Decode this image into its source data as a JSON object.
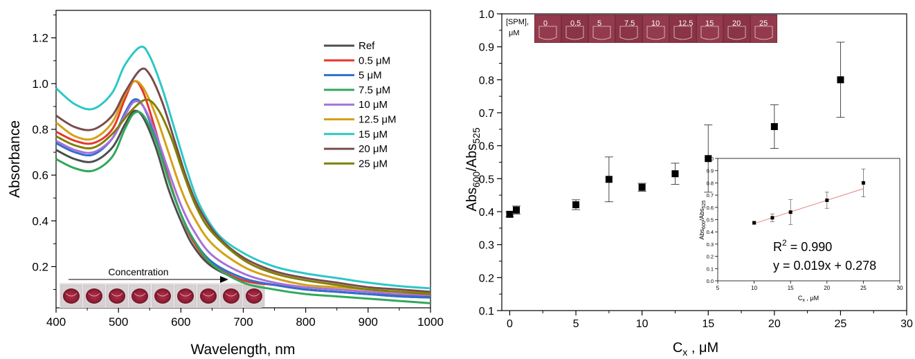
{
  "chart_data": [
    {
      "type": "line",
      "xlabel": "Wavelength, nm",
      "ylabel": "Absorbance",
      "xlim": [
        400,
        1000
      ],
      "ylim": [
        0.02,
        1.32
      ],
      "xticks": [
        400,
        500,
        600,
        700,
        800,
        900,
        1000
      ],
      "yticks": [
        0.2,
        0.4,
        0.6,
        0.8,
        1.0,
        1.2
      ],
      "ytick_labels": [
        "0.2",
        "0.4",
        "0.6",
        "0.8",
        "1.0",
        "1.2"
      ],
      "legend_position": "top-right",
      "annotation": "Concentration",
      "photo_wells": 9,
      "series": [
        {
          "name": "Ref",
          "color": "#4d4d4d",
          "points": [
            [
              400,
              0.71
            ],
            [
              430,
              0.67
            ],
            [
              460,
              0.66
            ],
            [
              490,
              0.72
            ],
            [
              510,
              0.82
            ],
            [
              525,
              0.88
            ],
            [
              540,
              0.85
            ],
            [
              560,
              0.72
            ],
            [
              580,
              0.54
            ],
            [
              600,
              0.4
            ],
            [
              620,
              0.29
            ],
            [
              650,
              0.2
            ],
            [
              700,
              0.14
            ],
            [
              750,
              0.12
            ],
            [
              800,
              0.1
            ],
            [
              850,
              0.09
            ],
            [
              900,
              0.08
            ],
            [
              950,
              0.075
            ],
            [
              1000,
              0.07
            ]
          ]
        },
        {
          "name": "0.5 μM",
          "color": "#e8352d",
          "points": [
            [
              400,
              0.79
            ],
            [
              430,
              0.75
            ],
            [
              460,
              0.74
            ],
            [
              490,
              0.8
            ],
            [
              510,
              0.93
            ],
            [
              525,
              1.01
            ],
            [
              540,
              0.96
            ],
            [
              560,
              0.79
            ],
            [
              580,
              0.59
            ],
            [
              600,
              0.43
            ],
            [
              620,
              0.31
            ],
            [
              650,
              0.21
            ],
            [
              700,
              0.14
            ],
            [
              750,
              0.12
            ],
            [
              800,
              0.1
            ],
            [
              850,
              0.09
            ],
            [
              900,
              0.08
            ],
            [
              950,
              0.07
            ],
            [
              1000,
              0.065
            ]
          ]
        },
        {
          "name": "5 μM",
          "color": "#2f6fd0",
          "points": [
            [
              400,
              0.74
            ],
            [
              430,
              0.7
            ],
            [
              460,
              0.69
            ],
            [
              490,
              0.76
            ],
            [
              510,
              0.87
            ],
            [
              525,
              0.93
            ],
            [
              540,
              0.9
            ],
            [
              560,
              0.76
            ],
            [
              580,
              0.58
            ],
            [
              600,
              0.43
            ],
            [
              620,
              0.32
            ],
            [
              650,
              0.22
            ],
            [
              700,
              0.15
            ],
            [
              750,
              0.12
            ],
            [
              800,
              0.1
            ],
            [
              850,
              0.09
            ],
            [
              900,
              0.08
            ],
            [
              950,
              0.07
            ],
            [
              1000,
              0.065
            ]
          ]
        },
        {
          "name": "7.5 μM",
          "color": "#2fa85a",
          "points": [
            [
              400,
              0.67
            ],
            [
              430,
              0.63
            ],
            [
              460,
              0.62
            ],
            [
              490,
              0.68
            ],
            [
              510,
              0.8
            ],
            [
              525,
              0.87
            ],
            [
              540,
              0.86
            ],
            [
              560,
              0.75
            ],
            [
              580,
              0.58
            ],
            [
              600,
              0.43
            ],
            [
              620,
              0.32
            ],
            [
              650,
              0.21
            ],
            [
              700,
              0.13
            ],
            [
              750,
              0.1
            ],
            [
              800,
              0.08
            ],
            [
              850,
              0.07
            ],
            [
              900,
              0.06
            ],
            [
              950,
              0.05
            ],
            [
              1000,
              0.04
            ]
          ]
        },
        {
          "name": "10 μM",
          "color": "#a671d8",
          "points": [
            [
              400,
              0.75
            ],
            [
              430,
              0.71
            ],
            [
              460,
              0.7
            ],
            [
              490,
              0.76
            ],
            [
              510,
              0.86
            ],
            [
              525,
              0.92
            ],
            [
              540,
              0.9
            ],
            [
              560,
              0.78
            ],
            [
              580,
              0.62
            ],
            [
              600,
              0.47
            ],
            [
              620,
              0.36
            ],
            [
              650,
              0.25
            ],
            [
              700,
              0.17
            ],
            [
              750,
              0.13
            ],
            [
              800,
              0.11
            ],
            [
              850,
              0.1
            ],
            [
              900,
              0.09
            ],
            [
              950,
              0.08
            ],
            [
              1000,
              0.075
            ]
          ]
        },
        {
          "name": "12.5 μM",
          "color": "#d4a017",
          "points": [
            [
              400,
              0.83
            ],
            [
              430,
              0.77
            ],
            [
              460,
              0.76
            ],
            [
              490,
              0.83
            ],
            [
              510,
              0.95
            ],
            [
              525,
              1.01
            ],
            [
              540,
              0.98
            ],
            [
              560,
              0.86
            ],
            [
              580,
              0.7
            ],
            [
              600,
              0.54
            ],
            [
              620,
              0.42
            ],
            [
              650,
              0.3
            ],
            [
              700,
              0.2
            ],
            [
              750,
              0.15
            ],
            [
              800,
              0.12
            ],
            [
              850,
              0.11
            ],
            [
              900,
              0.1
            ],
            [
              950,
              0.09
            ],
            [
              1000,
              0.085
            ]
          ]
        },
        {
          "name": "15 μM",
          "color": "#2cc7c7",
          "points": [
            [
              400,
              0.98
            ],
            [
              430,
              0.91
            ],
            [
              460,
              0.89
            ],
            [
              490,
              0.96
            ],
            [
              510,
              1.08
            ],
            [
              535,
              1.16
            ],
            [
              550,
              1.12
            ],
            [
              570,
              0.98
            ],
            [
              590,
              0.8
            ],
            [
              610,
              0.62
            ],
            [
              630,
              0.47
            ],
            [
              660,
              0.34
            ],
            [
              700,
              0.26
            ],
            [
              750,
              0.2
            ],
            [
              800,
              0.17
            ],
            [
              850,
              0.15
            ],
            [
              900,
              0.13
            ],
            [
              950,
              0.115
            ],
            [
              1000,
              0.105
            ]
          ]
        },
        {
          "name": "20 μM",
          "color": "#7a4c4c",
          "points": [
            [
              400,
              0.86
            ],
            [
              430,
              0.81
            ],
            [
              460,
              0.8
            ],
            [
              490,
              0.86
            ],
            [
              510,
              0.96
            ],
            [
              535,
              1.06
            ],
            [
              550,
              1.04
            ],
            [
              570,
              0.92
            ],
            [
              590,
              0.75
            ],
            [
              610,
              0.58
            ],
            [
              630,
              0.45
            ],
            [
              660,
              0.33
            ],
            [
              700,
              0.24
            ],
            [
              750,
              0.18
            ],
            [
              800,
              0.15
            ],
            [
              850,
              0.13
            ],
            [
              900,
              0.11
            ],
            [
              950,
              0.1
            ],
            [
              1000,
              0.09
            ]
          ]
        },
        {
          "name": "25 μM",
          "color": "#808000",
          "points": [
            [
              400,
              0.77
            ],
            [
              430,
              0.73
            ],
            [
              460,
              0.72
            ],
            [
              490,
              0.78
            ],
            [
              520,
              0.88
            ],
            [
              545,
              0.93
            ],
            [
              565,
              0.88
            ],
            [
              585,
              0.76
            ],
            [
              605,
              0.6
            ],
            [
              625,
              0.46
            ],
            [
              650,
              0.35
            ],
            [
              700,
              0.23
            ],
            [
              750,
              0.17
            ],
            [
              800,
              0.14
            ],
            [
              850,
              0.12
            ],
            [
              900,
              0.1
            ],
            [
              950,
              0.09
            ],
            [
              1000,
              0.08
            ]
          ]
        }
      ]
    },
    {
      "type": "scatter",
      "xlabel": "C",
      "xlabel_sub": "x",
      "xlabel_unit": " , μM",
      "ylabel": "Abs",
      "ylabel_sub1": "600",
      "ylabel_mid": "/Abs",
      "ylabel_sub2": "525",
      "xlim": [
        -0.6,
        30
      ],
      "ylim": [
        0.1,
        1.0
      ],
      "xticks": [
        0,
        5,
        10,
        15,
        20,
        25,
        30
      ],
      "yticks": [
        0.1,
        0.2,
        0.3,
        0.4,
        0.5,
        0.6,
        0.7,
        0.8,
        0.9,
        1.0
      ],
      "ytick_labels": [
        "0.1",
        "0.2",
        "0.3",
        "0.4",
        "0.5",
        "0.6",
        "0.7",
        "0.8",
        "0.9",
        "1.0"
      ],
      "photo_label": "[SPM],",
      "photo_unit": "μM",
      "photo_concentrations": [
        "0",
        "0.5",
        "5",
        "7.5",
        "10",
        "12.5",
        "15",
        "20",
        "25"
      ],
      "points": [
        {
          "x": 0,
          "y": 0.392,
          "err": 0.008
        },
        {
          "x": 0.5,
          "y": 0.405,
          "err": 0.012
        },
        {
          "x": 5,
          "y": 0.421,
          "err": 0.015
        },
        {
          "x": 7.5,
          "y": 0.498,
          "err": 0.068
        },
        {
          "x": 10,
          "y": 0.474,
          "err": 0.012
        },
        {
          "x": 12.5,
          "y": 0.515,
          "err": 0.032
        },
        {
          "x": 15,
          "y": 0.561,
          "err": 0.102
        },
        {
          "x": 20,
          "y": 0.658,
          "err": 0.066
        },
        {
          "x": 25,
          "y": 0.8,
          "err": 0.114
        }
      ],
      "inset": {
        "type": "scatter",
        "xlabel": "C",
        "xlabel_sub": "x",
        "xlabel_unit": " , μM",
        "ylabel": "Abs",
        "ylabel_sub1": "600",
        "ylabel_mid": "/Abs",
        "ylabel_sub2": "525",
        "xlim": [
          5,
          30
        ],
        "ylim": [
          0.0,
          1.0
        ],
        "xticks": [
          5,
          10,
          15,
          20,
          25,
          30
        ],
        "yticks": [
          0.0,
          0.1,
          0.2,
          0.3,
          0.4,
          0.5,
          0.6,
          0.7,
          0.8,
          0.9,
          1.0
        ],
        "ytick_labels": [
          "0.0",
          "0.1",
          "0.2",
          "0.3",
          "0.4",
          "0.5",
          "0.6",
          "0.7",
          "0.8",
          "0.9",
          "1.0"
        ],
        "points": [
          {
            "x": 10,
            "y": 0.474,
            "err": 0.012
          },
          {
            "x": 12.5,
            "y": 0.515,
            "err": 0.032
          },
          {
            "x": 15,
            "y": 0.561,
            "err": 0.102
          },
          {
            "x": 20,
            "y": 0.658,
            "err": 0.066
          },
          {
            "x": 25,
            "y": 0.8,
            "err": 0.114
          }
        ],
        "fit": {
          "slope": 0.019,
          "intercept": 0.278,
          "x_range": [
            10,
            25
          ]
        },
        "fit_color": "#e88080",
        "r2_label": "R",
        "r2_sup": "2",
        "r2_value": " = 0.990",
        "equation": "y = 0.019x + 0.278"
      }
    }
  ]
}
